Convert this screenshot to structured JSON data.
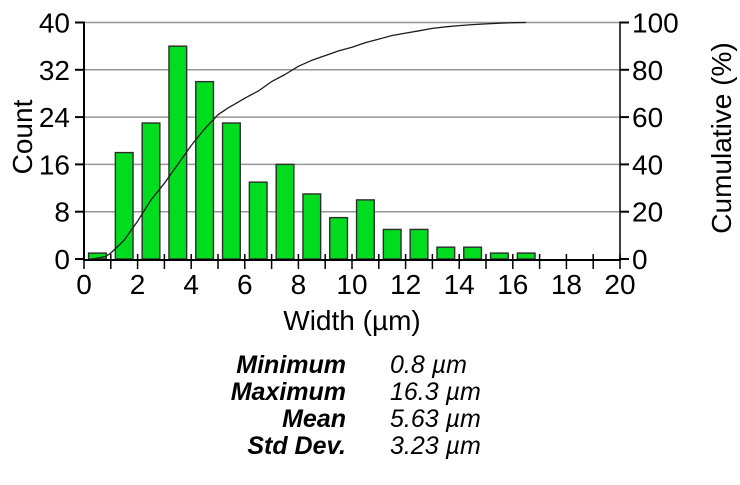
{
  "chart_data": {
    "type": "bar+line",
    "title": "",
    "xlabel": "Width (µm)",
    "ylabel_left": "Count",
    "ylabel_right": "Cumulative (%)",
    "xlim": [
      0,
      20
    ],
    "ylim_left": [
      0,
      40
    ],
    "ylim_right": [
      0,
      100
    ],
    "x_major_ticks": [
      0,
      2,
      4,
      6,
      8,
      10,
      12,
      14,
      16,
      18,
      20
    ],
    "x_minor_tick_step": 1,
    "y_ticks_left": [
      0,
      8,
      16,
      24,
      32,
      40
    ],
    "y_ticks_right": [
      0,
      20,
      40,
      60,
      80,
      100
    ],
    "gridline_values_left": [
      8,
      16,
      24,
      32,
      40
    ],
    "grid": "horizontal-only",
    "legend_position": "none",
    "histogram": {
      "series_name": "Count",
      "bin_width_um": 1,
      "bin_centers_um": [
        0.5,
        1.5,
        2.5,
        3.5,
        4.5,
        5.5,
        6.5,
        7.5,
        8.5,
        9.5,
        10.5,
        11.5,
        12.5,
        13.5,
        14.5,
        15.5,
        16.5
      ],
      "counts": [
        1,
        18,
        23,
        36,
        30,
        23,
        13,
        16,
        11,
        7,
        10,
        5,
        5,
        2,
        2,
        1,
        1
      ]
    },
    "cumulative_series": {
      "series_name": "Cumulative (%)",
      "points_um_pct": [
        [
          0.3,
          0
        ],
        [
          0.8,
          1
        ],
        [
          1.0,
          2.5
        ],
        [
          1.5,
          8
        ],
        [
          2.0,
          16
        ],
        [
          2.5,
          25
        ],
        [
          3.0,
          32
        ],
        [
          3.5,
          40
        ],
        [
          4.0,
          48
        ],
        [
          4.5,
          55
        ],
        [
          5.0,
          61
        ],
        [
          5.4,
          64
        ],
        [
          5.7,
          66
        ],
        [
          6.0,
          68
        ],
        [
          6.5,
          71
        ],
        [
          7.0,
          75
        ],
        [
          7.5,
          78
        ],
        [
          8.0,
          81.5
        ],
        [
          8.5,
          84
        ],
        [
          9.0,
          86
        ],
        [
          9.5,
          88
        ],
        [
          10.0,
          89.5
        ],
        [
          10.5,
          91.5
        ],
        [
          11.0,
          93
        ],
        [
          11.5,
          94.5
        ],
        [
          12.0,
          95.5
        ],
        [
          12.5,
          96.5
        ],
        [
          13.0,
          97.5
        ],
        [
          13.5,
          98.2
        ],
        [
          14.0,
          98.7
        ],
        [
          14.5,
          99.1
        ],
        [
          15.0,
          99.4
        ],
        [
          15.5,
          99.7
        ],
        [
          16.0,
          99.9
        ],
        [
          16.5,
          100
        ]
      ]
    }
  },
  "colors": {
    "background": "#ffffff",
    "bar_fill": "#00dd1e",
    "bar_stroke": "#2d2d2d",
    "grid": "#969696",
    "axis": "#000000",
    "curve": "#1c1c1c",
    "text": "#000000"
  },
  "stats": {
    "rows": [
      {
        "label": "Minimum",
        "value": "0.8 µm"
      },
      {
        "label": "Maximum",
        "value": "16.3 µm"
      },
      {
        "label": "Mean",
        "value": "5.63 µm"
      },
      {
        "label": "Std Dev.",
        "value": "3.23 µm"
      }
    ]
  }
}
